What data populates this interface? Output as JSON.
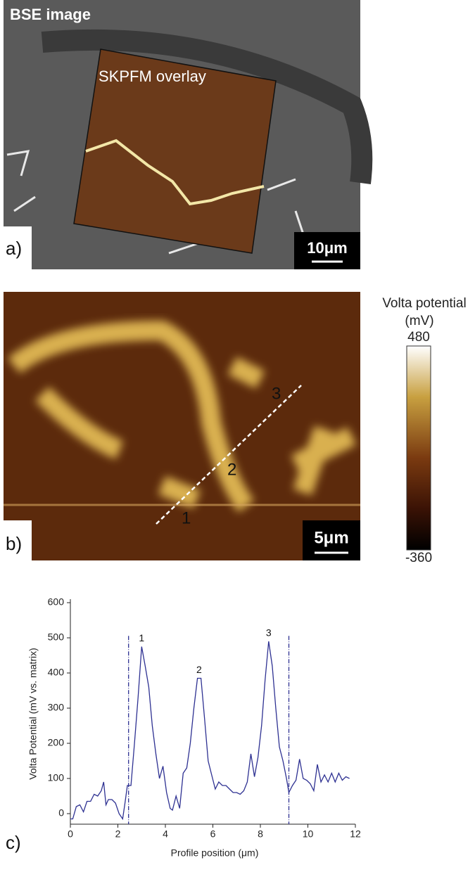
{
  "panel_a": {
    "label": "a)",
    "title": "BSE image",
    "overlay": "SKPFM overlay",
    "scale": "10μm"
  },
  "panel_b": {
    "label": "b)",
    "points": [
      "1",
      "2",
      "3"
    ],
    "scale": "5μm"
  },
  "colorbar": {
    "title": "Volta potential",
    "unit": "(mV)",
    "ticks": [
      480,
      -360
    ]
  },
  "chart_data": {
    "type": "line",
    "label": "c)",
    "x_label": "Profile position (μm)",
    "y_label": "Volta Potential  (mV vs. matrix)",
    "x": [
      0,
      0.1,
      0.25,
      0.4,
      0.55,
      0.7,
      0.85,
      1.0,
      1.15,
      1.3,
      1.4,
      1.5,
      1.6,
      1.75,
      1.9,
      2.05,
      2.2,
      2.3,
      2.4,
      2.55,
      2.7,
      2.85,
      3.0,
      3.15,
      3.3,
      3.45,
      3.6,
      3.75,
      3.9,
      4.05,
      4.2,
      4.3,
      4.45,
      4.6,
      4.75,
      4.9,
      5.05,
      5.2,
      5.35,
      5.5,
      5.65,
      5.8,
      5.95,
      6.1,
      6.25,
      6.4,
      6.55,
      6.7,
      6.85,
      7.0,
      7.15,
      7.3,
      7.45,
      7.6,
      7.75,
      7.9,
      8.05,
      8.2,
      8.35,
      8.5,
      8.65,
      8.8,
      8.95,
      9.1,
      9.2,
      9.35,
      9.5,
      9.65,
      9.8,
      9.95,
      10.1,
      10.25,
      10.4,
      10.55,
      10.7,
      10.85,
      11.0,
      11.15,
      11.3,
      11.45,
      11.6,
      11.75
    ],
    "values": [
      -15,
      -15,
      20,
      25,
      5,
      35,
      35,
      55,
      50,
      65,
      90,
      25,
      40,
      40,
      30,
      0,
      -15,
      30,
      80,
      80,
      200,
      330,
      475,
      420,
      360,
      250,
      170,
      100,
      135,
      60,
      15,
      10,
      50,
      15,
      115,
      130,
      200,
      300,
      385,
      385,
      270,
      150,
      110,
      70,
      90,
      80,
      80,
      70,
      60,
      60,
      55,
      65,
      90,
      170,
      105,
      160,
      250,
      380,
      490,
      420,
      300,
      190,
      150,
      100,
      60,
      80,
      95,
      155,
      100,
      95,
      85,
      65,
      140,
      90,
      110,
      90,
      115,
      90,
      115,
      95,
      105,
      100
    ],
    "color": "#2e3192",
    "xlim": [
      0,
      12
    ],
    "xticks": [
      0,
      2,
      4,
      6,
      8,
      10,
      12
    ],
    "ylim": [
      -30,
      600
    ],
    "yticks": [
      0,
      100,
      200,
      300,
      400,
      500,
      600
    ],
    "vlines": [
      2.45,
      9.2
    ],
    "annotations": [
      {
        "text": "1",
        "x": 3.0,
        "y": 475
      },
      {
        "text": "2",
        "x": 5.42,
        "y": 385
      },
      {
        "text": "3",
        "x": 8.35,
        "y": 490
      }
    ]
  }
}
